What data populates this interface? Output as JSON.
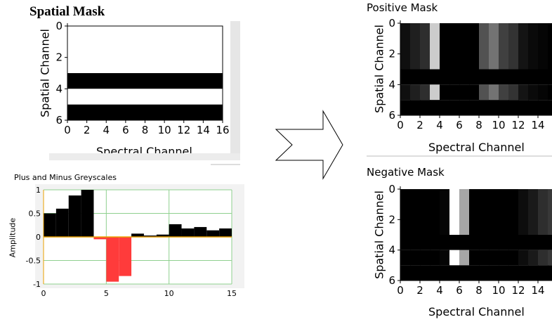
{
  "chart_data": [
    {
      "type": "heatmap",
      "title": "Spatial Mask",
      "xlabel": "Spectral Channel",
      "ylabel": "Spatial Channel",
      "x_ticks": [
        "0",
        "2",
        "4",
        "6",
        "8",
        "10",
        "12",
        "14",
        "16"
      ],
      "y_ticks": [
        "0",
        "2",
        "4",
        "6"
      ],
      "xlim": [
        0,
        16
      ],
      "ylim": [
        0,
        6
      ],
      "rows": [
        {
          "y0": 0,
          "y1": 3,
          "value": 1
        },
        {
          "y0": 3,
          "y1": 4,
          "value": 0
        },
        {
          "y0": 4,
          "y1": 5,
          "value": 1
        },
        {
          "y0": 5,
          "y1": 6,
          "value": 0
        }
      ]
    },
    {
      "type": "bar",
      "title": "Plus and Minus Greyscales",
      "xlabel": "",
      "ylabel": "Amplitude",
      "x_ticks": [
        "0",
        "5",
        "10",
        "15"
      ],
      "y_ticks": [
        "1",
        "0.5",
        "0",
        "-0.5",
        "-1"
      ],
      "xlim": [
        0,
        15
      ],
      "ylim": [
        -1,
        1
      ],
      "grid": true,
      "bar_width": 1,
      "x": [
        0,
        1,
        2,
        3,
        4,
        5,
        6,
        7,
        8,
        9,
        10,
        11,
        12,
        13,
        14
      ],
      "values": [
        0.5,
        0.6,
        0.88,
        1.0,
        -0.05,
        -0.95,
        -0.83,
        0.07,
        0.03,
        0.05,
        0.27,
        0.18,
        0.21,
        0.14,
        0.18
      ],
      "positive_color": "#000000",
      "negative_color": "#ff3b3b",
      "grid_color": "#8fd08f",
      "zero_line_color": "#e8a000"
    },
    {
      "type": "heatmap",
      "title": "Positive  Mask",
      "xlabel": "Spectral Channel",
      "ylabel": "Spatial Channel",
      "x_ticks": [
        "0",
        "2",
        "4",
        "6",
        "8",
        "10",
        "12",
        "14",
        "1"
      ],
      "y_ticks": [
        "0",
        "2",
        "4",
        "6"
      ],
      "xlim": [
        0,
        16
      ],
      "ylim": [
        0,
        6
      ],
      "row_groups": [
        {
          "y0": 0,
          "y1": 3,
          "cells": [
            0.06,
            0.12,
            0.18,
            0.8,
            0.0,
            0.0,
            0.0,
            0.0,
            0.32,
            0.45,
            0.25,
            0.2,
            0.08,
            0.04,
            0.02,
            0.0
          ]
        },
        {
          "y0": 3,
          "y1": 4,
          "cells": [
            0,
            0,
            0,
            0,
            0,
            0,
            0,
            0,
            0,
            0,
            0,
            0,
            0,
            0,
            0,
            0
          ]
        },
        {
          "y0": 4,
          "y1": 5,
          "cells": [
            0.06,
            0.12,
            0.18,
            0.8,
            0.0,
            0.0,
            0.0,
            0.0,
            0.32,
            0.45,
            0.25,
            0.2,
            0.08,
            0.04,
            0.02,
            0.0
          ]
        },
        {
          "y0": 5,
          "y1": 6,
          "cells": [
            0,
            0,
            0,
            0,
            0,
            0,
            0,
            0,
            0,
            0,
            0,
            0,
            0,
            0,
            0,
            0
          ]
        }
      ]
    },
    {
      "type": "heatmap",
      "title": "Negative  Mask",
      "xlabel": "Spectral Channel",
      "ylabel": "Spatial Channel",
      "x_ticks": [
        "0",
        "2",
        "4",
        "6",
        "8",
        "10",
        "12",
        "14",
        "1"
      ],
      "y_ticks": [
        "0",
        "2",
        "4",
        "6"
      ],
      "xlim": [
        0,
        16
      ],
      "ylim": [
        0,
        6
      ],
      "row_groups": [
        {
          "y0": 0,
          "y1": 3,
          "cells": [
            0,
            0,
            0,
            0,
            0.02,
            1.0,
            0.65,
            0.0,
            0.0,
            0.0,
            0.0,
            0.0,
            0.05,
            0.1,
            0.18,
            0.22
          ]
        },
        {
          "y0": 3,
          "y1": 4,
          "cells": [
            0,
            0,
            0,
            0,
            0,
            0,
            0,
            0,
            0,
            0,
            0,
            0,
            0,
            0,
            0,
            0
          ]
        },
        {
          "y0": 4,
          "y1": 5,
          "cells": [
            0,
            0,
            0,
            0,
            0.02,
            1.0,
            0.65,
            0.0,
            0.0,
            0.0,
            0.0,
            0.0,
            0.05,
            0.1,
            0.18,
            0.22
          ]
        },
        {
          "y0": 5,
          "y1": 6,
          "cells": [
            0,
            0,
            0,
            0,
            0,
            0,
            0,
            0,
            0,
            0,
            0,
            0,
            0,
            0,
            0,
            0
          ]
        }
      ]
    }
  ]
}
